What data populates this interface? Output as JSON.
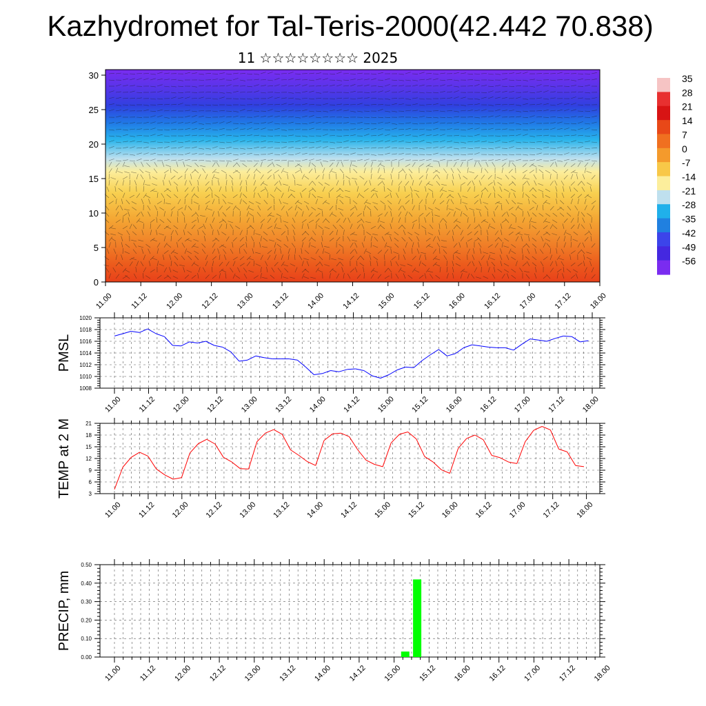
{
  "title": "Kazhydromet for Tal-Teris-2000(42.442 70.838)",
  "subtitle": "11 ☆☆☆☆☆☆☆☆ 2025",
  "chart_data": [
    {
      "type": "heatmap",
      "name": "cross-section",
      "x_labels": [
        "11.00",
        "11.12",
        "12.00",
        "12.12",
        "13.00",
        "13.12",
        "14.00",
        "14.12",
        "15.00",
        "15.12",
        "16.00",
        "16.12",
        "17.00",
        "17.12",
        "18.00"
      ],
      "y_ticks": [
        0,
        5,
        10,
        15,
        20,
        25,
        30
      ],
      "ylim": [
        0,
        30.8
      ],
      "colorbar": {
        "labels": [
          "35",
          "28",
          "21",
          "14",
          "7",
          "0",
          "-7",
          "-14",
          "-21",
          "-28",
          "-35",
          "-42",
          "-49",
          "-56"
        ],
        "colors": [
          "#f6c4c4",
          "#e83030",
          "#d81414",
          "#e84818",
          "#f07020",
          "#f49a2c",
          "#f8c848",
          "#fcee9c",
          "#bfe0ee",
          "#20b0ea",
          "#2080e0",
          "#3c44ea",
          "#4428e0",
          "#7a2cf0"
        ]
      },
      "grid": false
    },
    {
      "type": "line",
      "name": "pmsl",
      "ylabel": "PMSL",
      "ylim": [
        1008,
        1020
      ],
      "y_ticks": [
        "1008",
        "1010",
        "1012",
        "1014",
        "1016",
        "1018",
        "1020"
      ],
      "x_labels": [
        "11.00",
        "11.12",
        "12.00",
        "12.12",
        "13.00",
        "13.12",
        "14.00",
        "14.12",
        "15.00",
        "15.12",
        "16.00",
        "16.12",
        "17.00",
        "17.12",
        "18.00"
      ],
      "color": "#0000ff",
      "grid": true,
      "values": [
        1016.9,
        1017.3,
        1017.7,
        1017.5,
        1018.1,
        1017.3,
        1016.8,
        1015.3,
        1015.2,
        1015.9,
        1015.7,
        1016.0,
        1015.3,
        1015.0,
        1014.2,
        1012.6,
        1012.8,
        1013.5,
        1013.2,
        1013.0,
        1013.0,
        1013.0,
        1012.8,
        1011.6,
        1010.3,
        1010.5,
        1011.0,
        1010.8,
        1011.2,
        1011.3,
        1011.0,
        1010.1,
        1009.7,
        1010.3,
        1011.1,
        1011.6,
        1011.5,
        1012.7,
        1013.7,
        1014.6,
        1013.5,
        1013.9,
        1014.9,
        1015.4,
        1015.2,
        1015.0,
        1014.9,
        1014.9,
        1014.5,
        1015.5,
        1016.4,
        1016.2,
        1016.0,
        1016.5,
        1016.9,
        1016.8,
        1015.9,
        1016.1
      ]
    },
    {
      "type": "line",
      "name": "temp2m",
      "ylabel": "TEMP at 2 M",
      "ylim": [
        3,
        21
      ],
      "y_ticks": [
        "3",
        "6",
        "9",
        "12",
        "15",
        "18",
        "21"
      ],
      "x_labels": [
        "11.00",
        "11.12",
        "12.00",
        "12.12",
        "13.00",
        "13.12",
        "14.00",
        "14.12",
        "15.00",
        "15.12",
        "16.00",
        "16.12",
        "17.00",
        "17.12",
        "18.00"
      ],
      "color": "#ff0000",
      "grid": true,
      "values": [
        4.1,
        9.8,
        12.3,
        13.6,
        12.6,
        9.3,
        7.8,
        6.7,
        7.1,
        13.4,
        15.8,
        16.9,
        15.7,
        12.3,
        11.1,
        9.4,
        9.3,
        16.3,
        18.5,
        19.4,
        18.2,
        14.2,
        12.8,
        11.2,
        10.2,
        16.6,
        18.3,
        18.5,
        17.6,
        14.3,
        11.6,
        10.5,
        9.9,
        16.0,
        18.2,
        18.8,
        17.0,
        12.5,
        11.1,
        9.1,
        8.2,
        14.6,
        17.1,
        18.0,
        16.8,
        12.8,
        12.2,
        11.1,
        10.7,
        16.3,
        19.2,
        20.2,
        19.3,
        14.4,
        13.7,
        10.2,
        9.9
      ]
    },
    {
      "type": "bar",
      "name": "precip",
      "ylabel": "PRECIP, mm",
      "ylim": [
        0,
        0.5
      ],
      "y_ticks": [
        "0.00",
        "0.10",
        "0.20",
        "0.30",
        "0.40",
        "0.50"
      ],
      "x_labels": [
        "11.00",
        "11.12",
        "12.00",
        "12.12",
        "13.00",
        "13.12",
        "14.00",
        "14.12",
        "15.00",
        "15.12",
        "16.00",
        "16.12",
        "17.00",
        "17.12",
        "18.00"
      ],
      "color": "#00ff00",
      "grid": true,
      "bars": [
        {
          "x": 4.16,
          "value": 0.03
        },
        {
          "x": 4.33,
          "value": 0.42
        }
      ]
    }
  ]
}
